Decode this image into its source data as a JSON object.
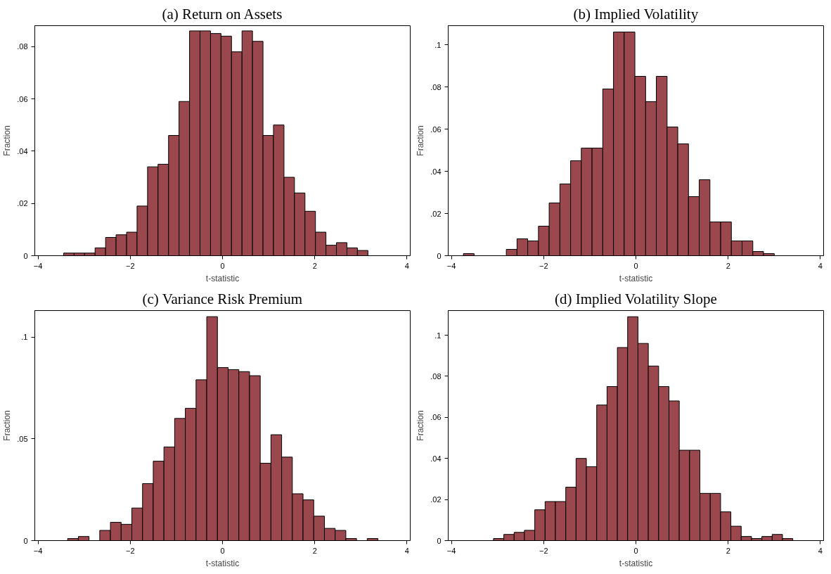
{
  "chart_data": [
    {
      "type": "histogram",
      "title": "(a) Return on Assets",
      "xlabel": "t-statistic",
      "ylabel": "Fraction",
      "color": "#9a484d",
      "bins": [
        -3.445,
        -3.218,
        -2.99,
        -2.763,
        -2.535,
        -2.308,
        -2.08,
        -1.853,
        -1.625,
        -1.398,
        -1.17,
        -0.943,
        -0.715,
        -0.488,
        -0.26,
        -0.033,
        0.195,
        0.423,
        0.65,
        0.878,
        1.105,
        1.333,
        1.56,
        1.788,
        2.015,
        2.243,
        2.47,
        2.698,
        2.925,
        3.153
      ],
      "values": [
        0.001,
        0.001,
        0.001,
        0.003,
        0.007,
        0.008,
        0.009,
        0.019,
        0.034,
        0.035,
        0.046,
        0.059,
        0.086,
        0.086,
        0.085,
        0.084,
        0.078,
        0.086,
        0.082,
        0.046,
        0.05,
        0.03,
        0.024,
        0.017,
        0.009,
        0.004,
        0.005,
        0.003,
        0.002
      ],
      "xlim": [
        -4.07,
        4.07
      ],
      "ylim": [
        0,
        0.088
      ],
      "xticks": [
        -4,
        -2,
        0,
        2,
        4
      ],
      "yticks": [
        {
          "value": 0,
          "label": "0"
        },
        {
          "value": 0.02,
          "label": ".02"
        },
        {
          "value": 0.04,
          "label": ".04"
        },
        {
          "value": 0.06,
          "label": ".06"
        },
        {
          "value": 0.08,
          "label": ".08"
        }
      ]
    },
    {
      "type": "histogram",
      "title": "(b) Implied Volatility",
      "xlabel": "t-statistic",
      "ylabel": "Fraction",
      "color": "#9a484d",
      "bins": [
        -3.74,
        -3.508,
        -3.275,
        -3.043,
        -2.81,
        -2.578,
        -2.346,
        -2.113,
        -1.881,
        -1.648,
        -1.416,
        -1.184,
        -0.951,
        -0.719,
        -0.486,
        -0.254,
        -0.022,
        0.211,
        0.443,
        0.676,
        0.908,
        1.14,
        1.373,
        1.605,
        1.838,
        2.07,
        2.302,
        2.535,
        2.767,
        3.0
      ],
      "values": [
        0.001,
        0,
        0,
        0,
        0.003,
        0.008,
        0.007,
        0.014,
        0.025,
        0.034,
        0.045,
        0.051,
        0.051,
        0.079,
        0.106,
        0.106,
        0.085,
        0.073,
        0.085,
        0.061,
        0.053,
        0.028,
        0.036,
        0.016,
        0.016,
        0.007,
        0.007,
        0.002,
        0.001
      ],
      "xlim": [
        -4.07,
        4.07
      ],
      "ylim": [
        0,
        0.109
      ],
      "xticks": [
        -4,
        -2,
        0,
        2,
        4
      ],
      "yticks": [
        {
          "value": 0,
          "label": "0"
        },
        {
          "value": 0.02,
          "label": ".02"
        },
        {
          "value": 0.04,
          "label": ".04"
        },
        {
          "value": 0.06,
          "label": ".06"
        },
        {
          "value": 0.08,
          "label": ".08"
        },
        {
          "value": 0.1,
          "label": ".1"
        }
      ]
    },
    {
      "type": "histogram",
      "title": "(c) Variance Risk Premium",
      "xlabel": "t-statistic",
      "ylabel": "Fraction",
      "color": "#9a484d",
      "bins": [
        -3.358,
        -3.126,
        -2.894,
        -2.662,
        -2.43,
        -2.198,
        -1.966,
        -1.734,
        -1.502,
        -1.27,
        -1.038,
        -0.806,
        -0.574,
        -0.342,
        -0.11,
        0.122,
        0.354,
        0.586,
        0.818,
        1.05,
        1.282,
        1.514,
        1.746,
        1.978,
        2.21,
        2.442,
        2.674,
        2.906,
        3.138,
        3.37
      ],
      "values": [
        0.001,
        0.002,
        0,
        0.005,
        0.009,
        0.008,
        0.016,
        0.028,
        0.039,
        0.046,
        0.06,
        0.065,
        0.079,
        0.11,
        0.085,
        0.084,
        0.083,
        0.081,
        0.038,
        0.052,
        0.041,
        0.023,
        0.02,
        0.012,
        0.006,
        0.005,
        0.001,
        0,
        0.001
      ],
      "xlim": [
        -4.07,
        4.07
      ],
      "ylim": [
        0,
        0.113
      ],
      "xticks": [
        -4,
        -2,
        0,
        2,
        4
      ],
      "yticks": [
        {
          "value": 0,
          "label": "0"
        },
        {
          "value": 0.05,
          "label": ".05"
        },
        {
          "value": 0.1,
          "label": ".1"
        }
      ]
    },
    {
      "type": "histogram",
      "title": "(d) Implied Volatility Slope",
      "xlabel": "t-statistic",
      "ylabel": "Fraction",
      "color": "#9a484d",
      "bins": [
        -3.088,
        -2.864,
        -2.64,
        -2.417,
        -2.193,
        -1.969,
        -1.745,
        -1.521,
        -1.298,
        -1.074,
        -0.85,
        -0.626,
        -0.402,
        -0.179,
        0.045,
        0.269,
        0.493,
        0.717,
        0.94,
        1.164,
        1.388,
        1.612,
        1.836,
        2.059,
        2.283,
        2.507,
        2.731,
        2.955,
        3.178,
        3.402
      ],
      "values": [
        0.001,
        0.003,
        0.004,
        0.005,
        0.015,
        0.019,
        0.019,
        0.026,
        0.04,
        0.036,
        0.066,
        0.075,
        0.094,
        0.109,
        0.096,
        0.085,
        0.075,
        0.068,
        0.044,
        0.044,
        0.023,
        0.023,
        0.014,
        0.007,
        0.002,
        0.001,
        0.002,
        0.003,
        0.001
      ],
      "xlim": [
        -4.07,
        4.07
      ],
      "ylim": [
        0,
        0.112
      ],
      "xticks": [
        -4,
        -2,
        0,
        2,
        4
      ],
      "yticks": [
        {
          "value": 0,
          "label": "0"
        },
        {
          "value": 0.02,
          "label": ".02"
        },
        {
          "value": 0.04,
          "label": ".04"
        },
        {
          "value": 0.06,
          "label": ".06"
        },
        {
          "value": 0.08,
          "label": ".08"
        },
        {
          "value": 0.1,
          "label": ".1"
        }
      ]
    }
  ]
}
